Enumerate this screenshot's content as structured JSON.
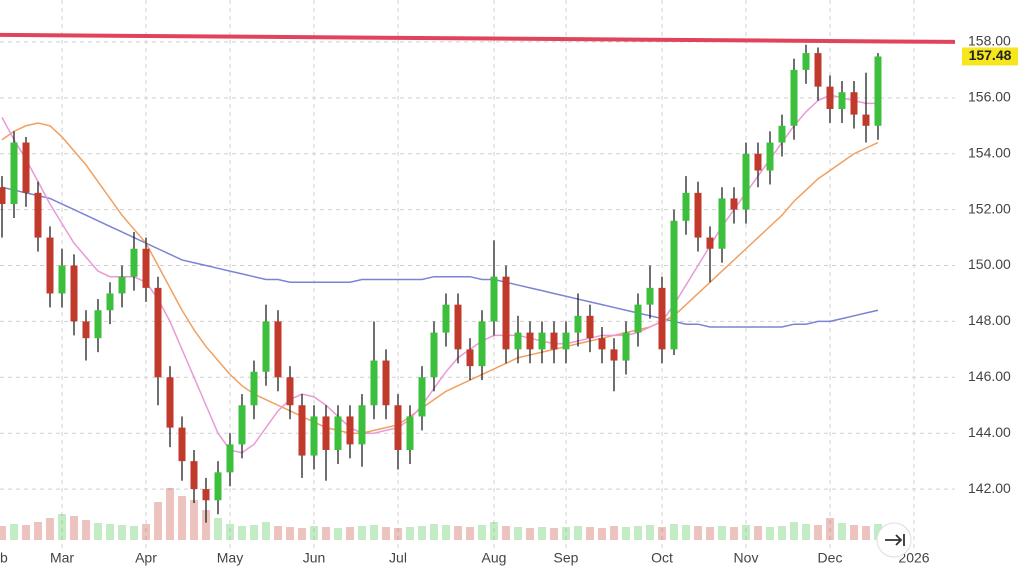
{
  "chart_data": {
    "type": "candlestick",
    "categories": [
      "b",
      null,
      null,
      null,
      null,
      "Mar",
      null,
      null,
      null,
      null,
      null,
      null,
      "Apr",
      null,
      null,
      null,
      null,
      null,
      null,
      "May",
      null,
      null,
      null,
      null,
      null,
      null,
      "Jun",
      null,
      null,
      null,
      null,
      null,
      null,
      "Jul",
      null,
      null,
      null,
      null,
      null,
      null,
      null,
      "Aug",
      null,
      null,
      null,
      null,
      null,
      "Sep",
      null,
      null,
      null,
      null,
      null,
      null,
      null,
      "Oct",
      null,
      null,
      null,
      null,
      null,
      null,
      "Nov",
      null,
      null,
      null,
      null,
      null,
      null,
      "Dec",
      null,
      null,
      null,
      null,
      null,
      null,
      "2026"
    ],
    "open": [
      152.8,
      152.2,
      154.4,
      152.6,
      151.0,
      149.0,
      150.0,
      148.0,
      147.4,
      148.4,
      149.0,
      149.6,
      150.6,
      149.2,
      146.0,
      144.2,
      143.0,
      142.0,
      141.6,
      142.6,
      143.6,
      145.0,
      146.2,
      148.0,
      146.0,
      145.0,
      143.2,
      144.6,
      143.4,
      144.6,
      143.6,
      145.0,
      146.6,
      145.0,
      143.4,
      144.6,
      146.0,
      147.6,
      148.6,
      147.0,
      146.4,
      148.0,
      149.6,
      147.0,
      147.6,
      147.0,
      147.6,
      147.0,
      147.6,
      148.2,
      147.4,
      147.0,
      146.6,
      147.6,
      148.6,
      149.2,
      147.0,
      151.6,
      152.6,
      151.0,
      150.6,
      152.4,
      152.0,
      154.0,
      153.4,
      154.4,
      155.0,
      157.0,
      157.6,
      156.4,
      155.6,
      156.2,
      155.4,
      155.0,
      null,
      null,
      null
    ],
    "high": [
      153.2,
      154.8,
      154.6,
      153.0,
      151.4,
      150.6,
      150.4,
      148.4,
      148.8,
      149.4,
      150.0,
      151.2,
      151.0,
      149.6,
      146.4,
      144.6,
      143.4,
      142.4,
      143.0,
      144.0,
      145.4,
      146.6,
      148.6,
      148.4,
      146.4,
      145.4,
      145.0,
      145.0,
      145.0,
      145.0,
      145.4,
      148.0,
      147.0,
      145.4,
      145.0,
      146.4,
      148.0,
      149.0,
      149.0,
      147.4,
      148.4,
      150.9,
      150.0,
      148.2,
      148.0,
      148.0,
      148.0,
      148.0,
      149.0,
      148.6,
      147.8,
      147.4,
      148.0,
      149.0,
      150.0,
      149.6,
      152.0,
      153.2,
      153.0,
      151.4,
      152.8,
      152.8,
      154.4,
      154.4,
      154.8,
      155.4,
      157.4,
      157.9,
      157.8,
      156.8,
      156.6,
      156.6,
      156.9,
      157.6,
      null,
      null,
      null
    ],
    "low": [
      151.0,
      151.7,
      152.1,
      150.5,
      148.5,
      148.5,
      147.5,
      146.6,
      146.9,
      147.9,
      148.5,
      149.1,
      148.7,
      145.0,
      143.5,
      142.3,
      141.5,
      140.8,
      141.1,
      142.1,
      143.1,
      144.5,
      145.7,
      145.5,
      144.5,
      142.4,
      142.7,
      142.3,
      142.9,
      143.1,
      142.8,
      144.5,
      144.5,
      142.7,
      142.9,
      144.1,
      145.5,
      147.1,
      146.5,
      145.9,
      145.9,
      147.5,
      146.5,
      146.5,
      146.5,
      146.5,
      146.5,
      146.5,
      147.1,
      146.9,
      146.5,
      145.5,
      146.1,
      147.1,
      148.1,
      146.5,
      146.8,
      151.1,
      150.5,
      149.4,
      150.1,
      151.5,
      151.5,
      152.8,
      152.9,
      153.9,
      154.5,
      156.5,
      155.9,
      155.1,
      155.1,
      154.9,
      154.4,
      154.5,
      null,
      null,
      null
    ],
    "close": [
      152.2,
      154.4,
      152.6,
      151.0,
      149.0,
      150.0,
      148.0,
      147.4,
      148.4,
      149.0,
      149.6,
      150.6,
      149.2,
      146.0,
      144.2,
      143.0,
      142.0,
      141.6,
      142.6,
      143.6,
      145.0,
      146.2,
      148.0,
      146.0,
      145.0,
      143.2,
      144.6,
      143.4,
      144.6,
      143.6,
      145.0,
      146.6,
      145.0,
      143.4,
      144.6,
      146.0,
      147.6,
      148.6,
      147.0,
      146.4,
      148.0,
      149.6,
      147.0,
      147.6,
      147.0,
      147.6,
      147.0,
      147.6,
      148.2,
      147.4,
      147.0,
      146.6,
      147.6,
      148.6,
      149.2,
      147.0,
      151.6,
      152.6,
      151.0,
      150.6,
      152.4,
      152.0,
      154.0,
      153.4,
      154.4,
      155.0,
      157.0,
      157.6,
      156.4,
      155.6,
      156.2,
      155.4,
      155.0,
      157.48,
      null,
      null,
      null
    ],
    "volume": [
      14,
      16,
      15,
      18,
      22,
      26,
      24,
      20,
      17,
      16,
      15,
      14,
      16,
      38,
      52,
      44,
      40,
      30,
      22,
      16,
      14,
      15,
      18,
      14,
      13,
      12,
      14,
      13,
      12,
      13,
      14,
      15,
      13,
      12,
      13,
      14,
      16,
      15,
      14,
      13,
      15,
      18,
      14,
      13,
      12,
      13,
      12,
      13,
      14,
      13,
      12,
      14,
      13,
      14,
      15,
      13,
      16,
      15,
      14,
      13,
      14,
      13,
      15,
      14,
      13,
      14,
      18,
      16,
      15,
      22,
      17,
      15,
      14,
      16,
      null,
      null,
      null
    ],
    "up_color": "#3cbf3c",
    "down_color": "#c0392b",
    "overlays": [
      {
        "color": "#7b83d4",
        "values": [
          152.8,
          152.7,
          152.6,
          152.5,
          152.4,
          152.2,
          152.0,
          151.8,
          151.6,
          151.4,
          151.2,
          151.0,
          150.8,
          150.6,
          150.4,
          150.2,
          150.1,
          150.0,
          149.9,
          149.8,
          149.7,
          149.6,
          149.5,
          149.5,
          149.4,
          149.4,
          149.4,
          149.4,
          149.4,
          149.4,
          149.5,
          149.5,
          149.5,
          149.5,
          149.5,
          149.5,
          149.6,
          149.6,
          149.6,
          149.6,
          149.5,
          149.5,
          149.4,
          149.3,
          149.2,
          149.1,
          149.0,
          148.9,
          148.8,
          148.7,
          148.6,
          148.5,
          148.4,
          148.3,
          148.2,
          148.1,
          148.0,
          147.9,
          147.9,
          147.8,
          147.8,
          147.8,
          147.8,
          147.8,
          147.8,
          147.8,
          147.9,
          147.9,
          148.0,
          148.0,
          148.1,
          148.2,
          148.3,
          148.4,
          null,
          null,
          null
        ]
      },
      {
        "color": "#f0a060",
        "values": [
          154.5,
          154.8,
          155.0,
          155.1,
          155.0,
          154.6,
          154.1,
          153.6,
          153.0,
          152.4,
          151.8,
          151.3,
          150.8,
          150.0,
          149.2,
          148.4,
          147.7,
          147.1,
          146.6,
          146.1,
          145.7,
          145.4,
          145.2,
          145.0,
          144.8,
          144.6,
          144.4,
          144.2,
          144.1,
          144.0,
          144.0,
          144.1,
          144.2,
          144.3,
          144.6,
          144.9,
          145.2,
          145.5,
          145.7,
          145.9,
          146.1,
          146.3,
          146.5,
          146.7,
          146.8,
          146.9,
          147.0,
          147.1,
          147.2,
          147.3,
          147.4,
          147.5,
          147.6,
          147.7,
          147.8,
          148.0,
          148.2,
          148.6,
          149.0,
          149.4,
          149.8,
          150.2,
          150.6,
          151.0,
          151.4,
          151.8,
          152.3,
          152.7,
          153.1,
          153.4,
          153.7,
          154.0,
          154.2,
          154.4,
          null,
          null,
          null
        ]
      },
      {
        "color": "#e99ad6",
        "values": [
          155.3,
          154.5,
          153.8,
          153.0,
          152.2,
          151.5,
          150.8,
          150.3,
          149.8,
          149.6,
          149.6,
          149.6,
          149.4,
          148.8,
          148.0,
          147.0,
          146.0,
          145.0,
          144.0,
          143.4,
          143.3,
          143.6,
          144.2,
          144.8,
          145.2,
          145.4,
          145.3,
          145.0,
          144.6,
          144.2,
          144.0,
          144.0,
          144.1,
          144.2,
          144.5,
          145.0,
          145.6,
          146.2,
          146.7,
          147.0,
          147.3,
          147.5,
          147.5,
          147.5,
          147.4,
          147.3,
          147.2,
          147.2,
          147.3,
          147.4,
          147.5,
          147.5,
          147.5,
          147.6,
          147.8,
          148.0,
          148.6,
          149.3,
          150.0,
          150.7,
          151.4,
          152.0,
          152.6,
          153.2,
          153.8,
          154.4,
          155.0,
          155.5,
          155.9,
          156.1,
          156.0,
          155.9,
          155.8,
          155.8,
          null,
          null,
          null
        ]
      }
    ],
    "resistance_line": {
      "start": 158.25,
      "end": 158.0,
      "color": "#e0435a"
    },
    "ylim": [
      140,
      159.5
    ],
    "yticks": [
      {
        "value": 142,
        "label": "142.00"
      },
      {
        "value": 144,
        "label": "144.00"
      },
      {
        "value": 146,
        "label": "146.00"
      },
      {
        "value": 148,
        "label": "148.00"
      },
      {
        "value": 150,
        "label": "150.00"
      },
      {
        "value": 152,
        "label": "152.00"
      },
      {
        "value": 154,
        "label": "154.00"
      },
      {
        "value": 156,
        "label": "156.00"
      },
      {
        "value": 158,
        "label": "158.00"
      }
    ],
    "grid": true
  }
}
